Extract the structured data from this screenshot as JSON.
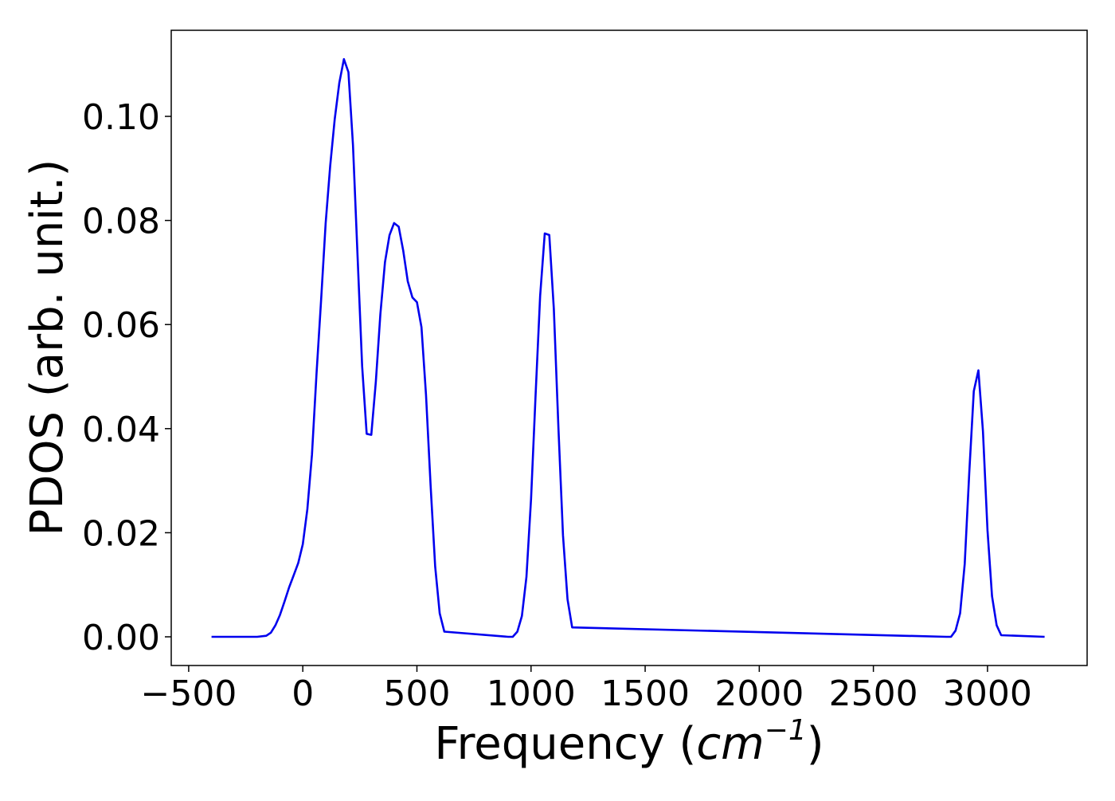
{
  "chart_data": {
    "type": "line",
    "title": "",
    "xlabel": "Frequency (",
    "xlabel_math": "cm",
    "xlabel_sup": "−1",
    "xlabel_close": ")",
    "ylabel": "PDOS (arb. unit.)",
    "xlim": [
      -400,
      3250
    ],
    "ylim": [
      -0.0055,
      0.1165
    ],
    "xticks": [
      -500,
      0,
      500,
      1000,
      1500,
      2000,
      2500,
      3000
    ],
    "xtick_labels": [
      "−500",
      "0",
      "500",
      "1000",
      "1500",
      "2000",
      "2500",
      "3000"
    ],
    "yticks": [
      0.0,
      0.02,
      0.04,
      0.06,
      0.08,
      0.1
    ],
    "ytick_labels": [
      "0.00",
      "0.02",
      "0.04",
      "0.06",
      "0.08",
      "0.10"
    ],
    "grid": false,
    "series": [
      {
        "color": "#0000ee",
        "x": [
          -400,
          -200,
          -160,
          -140,
          -120,
          -100,
          -80,
          -60,
          -40,
          -20,
          0,
          20,
          40,
          60,
          80,
          100,
          120,
          140,
          160,
          180,
          200,
          220,
          240,
          260,
          280,
          300,
          320,
          340,
          360,
          380,
          400,
          420,
          440,
          460,
          480,
          500,
          520,
          540,
          560,
          580,
          600,
          620,
          900,
          920,
          940,
          960,
          980,
          1000,
          1020,
          1040,
          1060,
          1080,
          1100,
          1120,
          1140,
          1160,
          1180,
          2820,
          2840,
          2860,
          2880,
          2900,
          2920,
          2940,
          2960,
          2980,
          3000,
          3020,
          3040,
          3060,
          3250
        ],
        "y": [
          0.0,
          0.0,
          0.0002,
          0.0008,
          0.0022,
          0.0042,
          0.0068,
          0.0095,
          0.0118,
          0.0142,
          0.0178,
          0.0245,
          0.035,
          0.0505,
          0.0645,
          0.0795,
          0.0905,
          0.0995,
          0.1065,
          0.111,
          0.1085,
          0.0945,
          0.073,
          0.052,
          0.039,
          0.0388,
          0.049,
          0.062,
          0.072,
          0.0772,
          0.0795,
          0.0788,
          0.0742,
          0.0683,
          0.0652,
          0.0643,
          0.0595,
          0.0465,
          0.029,
          0.0135,
          0.0045,
          0.001,
          0.0,
          0.0,
          0.001,
          0.004,
          0.0115,
          0.0265,
          0.0465,
          0.0655,
          0.0775,
          0.0772,
          0.063,
          0.04,
          0.0195,
          0.0072,
          0.0018,
          0.0,
          0.0,
          0.0012,
          0.0045,
          0.014,
          0.0315,
          0.0472,
          0.0512,
          0.0395,
          0.0205,
          0.0078,
          0.0022,
          0.0003,
          0.0
        ]
      }
    ]
  }
}
